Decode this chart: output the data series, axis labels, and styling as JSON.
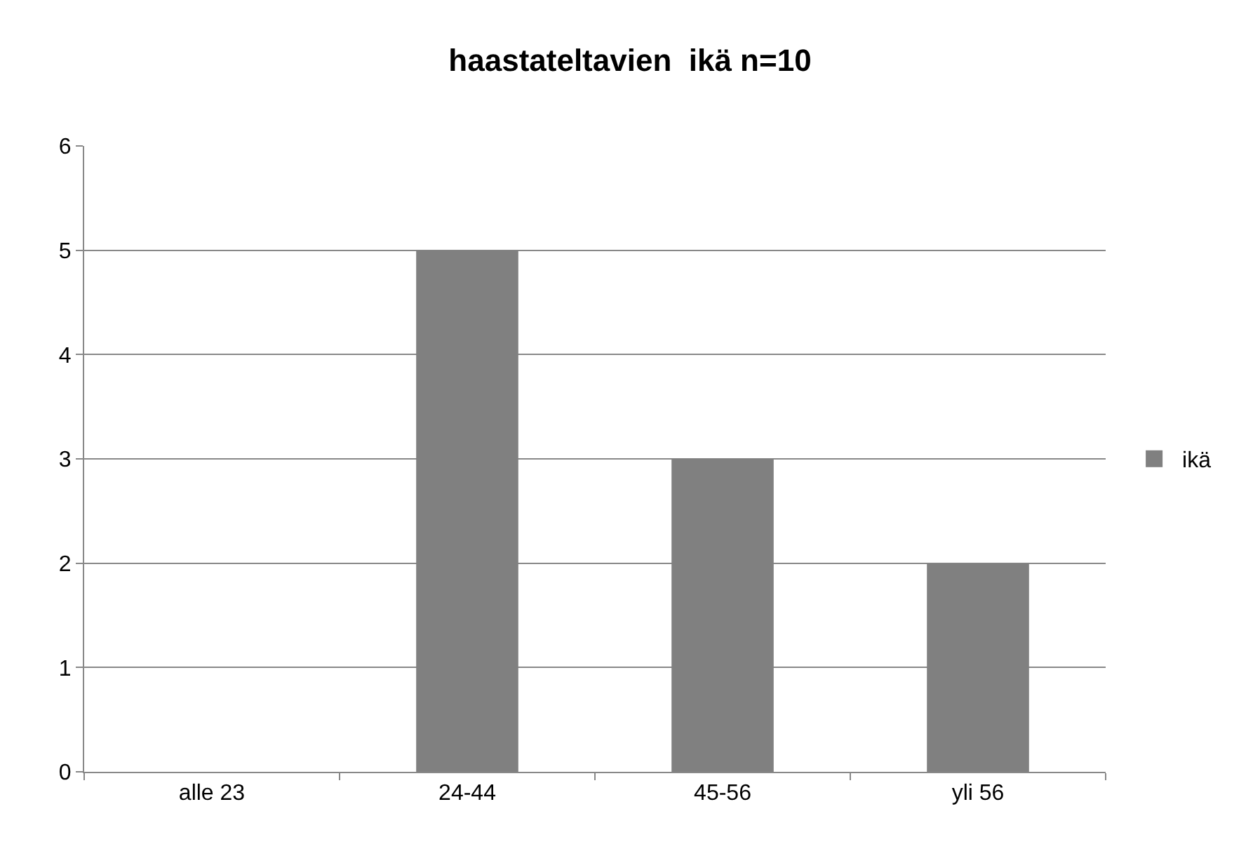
{
  "chart_data": {
    "type": "bar",
    "title": "haastateltavien  ikä n=10",
    "categories": [
      "alle 23",
      "24-44",
      "45-56",
      "yli 56"
    ],
    "series": [
      {
        "name": "ikä",
        "color": "#808080",
        "values": [
          0,
          5,
          3,
          2
        ]
      }
    ],
    "ylim": [
      0,
      6
    ],
    "yticks": [
      0,
      1,
      2,
      3,
      4,
      5,
      6
    ],
    "grid": "y",
    "legend": "right"
  }
}
